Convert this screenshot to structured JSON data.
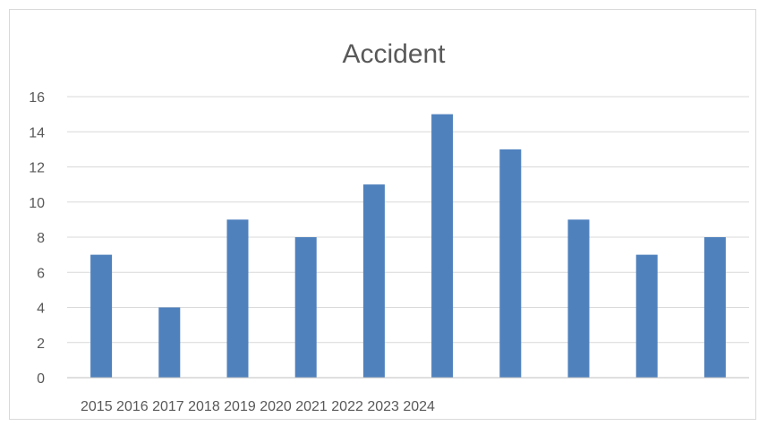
{
  "chart_data": {
    "type": "bar",
    "title": "Accident",
    "xlabel": "",
    "ylabel": "",
    "ylim": [
      0,
      16
    ],
    "yticks": [
      0,
      2,
      4,
      6,
      8,
      10,
      12,
      14,
      16
    ],
    "values": [
      7,
      4,
      9,
      8,
      11,
      15,
      13,
      9,
      7,
      8
    ],
    "x_tick_text": "2015 2016 2017 2018 2019 2020 2021 2022 2023 2024",
    "grid": true,
    "legend": "none",
    "colors": {
      "bar": "#4f81bd"
    }
  }
}
